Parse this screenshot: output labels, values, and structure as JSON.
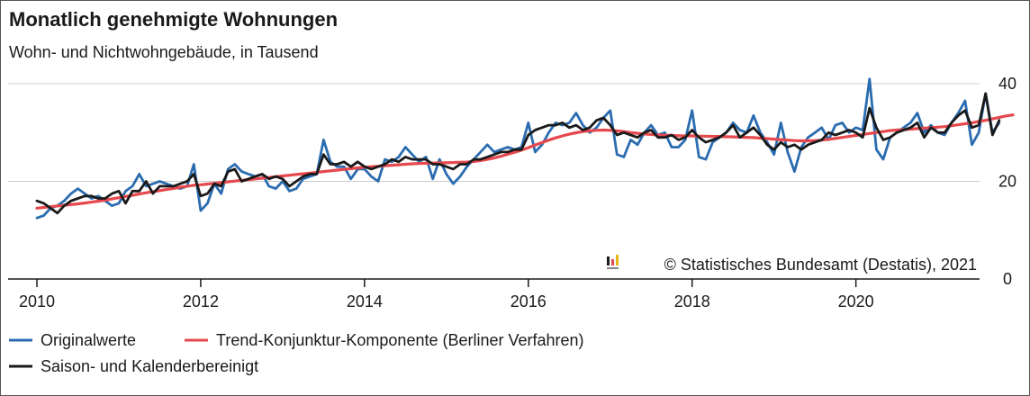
{
  "chart_data": {
    "type": "line",
    "title": "Monatlich genehmigte Wohnungen",
    "subtitle": "Wohn- und Nichtwohngebäude, in Tausend",
    "source": "© Statistisches Bundesamt (Destatis), 2021",
    "xlim": [
      2010,
      2021.4
    ],
    "ylim": [
      0,
      40
    ],
    "x_ticks": [
      2010,
      2012,
      2014,
      2016,
      2018,
      2020
    ],
    "y_ticks": [
      0,
      20,
      40
    ],
    "grid": "horizontal",
    "legend_position": "bottom",
    "x_start_label": "2010-01",
    "series": [
      {
        "name": "Originalwerte",
        "color": "#2b6cb0",
        "values": [
          12.5,
          13.0,
          14.5,
          15.0,
          16.0,
          17.5,
          18.5,
          17.5,
          16.5,
          17.0,
          16.0,
          15.0,
          15.5,
          18.0,
          19.0,
          21.5,
          19.0,
          19.5,
          20.0,
          19.5,
          19.0,
          18.5,
          19.0,
          23.5,
          14.0,
          15.5,
          19.5,
          17.5,
          22.5,
          23.5,
          22.0,
          21.5,
          21.0,
          21.5,
          19.0,
          18.5,
          20.0,
          18.0,
          18.5,
          20.5,
          21.0,
          21.5,
          28.5,
          24.0,
          23.0,
          23.0,
          20.5,
          22.5,
          22.5,
          21.0,
          20.0,
          24.5,
          24.0,
          25.0,
          27.0,
          25.5,
          24.0,
          25.0,
          20.5,
          24.5,
          21.5,
          19.5,
          21.0,
          23.0,
          24.5,
          26.0,
          27.5,
          26.0,
          26.5,
          27.0,
          26.5,
          27.0,
          32.0,
          26.0,
          27.5,
          30.0,
          32.0,
          31.5,
          32.0,
          34.0,
          31.5,
          30.0,
          31.0,
          33.0,
          34.5,
          25.5,
          25.0,
          28.5,
          27.5,
          30.0,
          31.5,
          29.5,
          30.0,
          27.0,
          27.0,
          28.5,
          34.5,
          25.0,
          24.5,
          28.0,
          29.0,
          30.0,
          32.0,
          30.5,
          30.0,
          33.5,
          30.0,
          28.0,
          25.5,
          32.0,
          26.0,
          22.0,
          27.0,
          29.0,
          30.0,
          31.0,
          28.5,
          31.5,
          32.0,
          30.0,
          31.0,
          30.5,
          41.0,
          26.5,
          24.5,
          29.0,
          30.0,
          31.0,
          32.0,
          34.0,
          30.0,
          31.5,
          30.0,
          29.5,
          32.0,
          34.0,
          36.5,
          27.5,
          30.0,
          38.0,
          30.0,
          32.0
        ]
      },
      {
        "name": "Trend-Konjunktur-Komponente (Berliner Verfahren)",
        "color": "#e5484d",
        "values": [
          14.5,
          14.65,
          14.8,
          14.95,
          15.1,
          15.25,
          15.4,
          15.55,
          15.75,
          15.95,
          16.15,
          16.4,
          16.65,
          16.9,
          17.15,
          17.4,
          17.65,
          17.9,
          18.1,
          18.35,
          18.55,
          18.8,
          19.0,
          19.2,
          19.3,
          19.45,
          19.6,
          19.75,
          19.9,
          20.05,
          20.2,
          20.35,
          20.5,
          20.65,
          20.8,
          20.95,
          21.1,
          21.25,
          21.4,
          21.55,
          21.7,
          21.85,
          22.0,
          22.15,
          22.3,
          22.45,
          22.6,
          22.75,
          22.9,
          23.0,
          23.1,
          23.2,
          23.3,
          23.4,
          23.5,
          23.6,
          23.65,
          23.7,
          23.75,
          23.8,
          23.8,
          23.85,
          23.9,
          23.95,
          24.05,
          24.25,
          24.5,
          24.8,
          25.15,
          25.55,
          25.95,
          26.4,
          26.9,
          27.45,
          27.95,
          28.45,
          28.9,
          29.3,
          29.65,
          29.95,
          30.2,
          30.35,
          30.45,
          30.5,
          30.45,
          30.35,
          30.2,
          30.0,
          29.85,
          29.7,
          29.6,
          29.5,
          29.45,
          29.4,
          29.35,
          29.3,
          29.3,
          29.25,
          29.25,
          29.2,
          29.2,
          29.15,
          29.1,
          29.05,
          29.0,
          28.95,
          28.85,
          28.75,
          28.65,
          28.55,
          28.45,
          28.35,
          28.3,
          28.3,
          28.35,
          28.45,
          28.6,
          28.8,
          29.0,
          29.2,
          29.4,
          29.6,
          29.8,
          30.0,
          30.2,
          30.4,
          30.5,
          30.6,
          30.7,
          30.8,
          30.9,
          31.0,
          31.1,
          31.2,
          31.4,
          31.6,
          31.8,
          32.0,
          32.25,
          32.5,
          32.8,
          33.1,
          33.4,
          33.6
        ]
      },
      {
        "name": "Saison- und Kalenderbereinigt",
        "color": "#1a1a1a",
        "values": [
          16.0,
          15.5,
          14.5,
          13.5,
          15.0,
          16.0,
          16.5,
          17.0,
          17.0,
          16.5,
          16.5,
          17.5,
          18.0,
          15.5,
          18.0,
          18.0,
          20.0,
          17.5,
          19.0,
          19.0,
          19.0,
          19.5,
          20.0,
          21.5,
          17.0,
          17.5,
          19.5,
          19.0,
          22.0,
          22.5,
          20.0,
          20.5,
          21.0,
          21.5,
          20.5,
          21.0,
          20.5,
          19.0,
          20.0,
          21.0,
          21.5,
          21.5,
          25.5,
          23.5,
          23.5,
          24.0,
          23.0,
          24.0,
          23.0,
          22.5,
          23.0,
          23.5,
          24.5,
          24.0,
          25.0,
          24.5,
          24.5,
          24.5,
          23.5,
          23.5,
          23.0,
          22.5,
          23.5,
          23.5,
          24.5,
          24.5,
          25.0,
          25.5,
          26.0,
          26.0,
          26.5,
          26.5,
          29.5,
          30.5,
          31.0,
          31.5,
          31.5,
          32.0,
          31.0,
          31.5,
          30.5,
          31.0,
          32.5,
          33.0,
          31.5,
          29.5,
          30.0,
          29.5,
          29.0,
          30.0,
          30.5,
          29.0,
          29.0,
          29.5,
          28.5,
          29.0,
          30.5,
          29.0,
          28.0,
          28.5,
          29.0,
          30.0,
          31.5,
          29.0,
          30.0,
          31.0,
          29.5,
          27.5,
          26.5,
          28.0,
          27.0,
          27.5,
          26.5,
          27.5,
          28.0,
          28.5,
          30.0,
          29.5,
          30.0,
          30.5,
          30.0,
          29.0,
          35.0,
          31.0,
          28.5,
          29.0,
          30.0,
          30.5,
          31.0,
          32.0,
          29.0,
          31.0,
          30.0,
          30.0,
          32.0,
          33.5,
          34.5,
          31.0,
          31.5,
          38.0,
          29.5,
          32.5
        ]
      }
    ]
  }
}
